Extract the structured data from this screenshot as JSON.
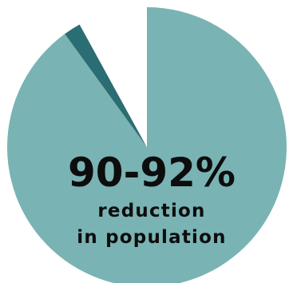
{
  "chart_data": {
    "type": "pie",
    "title": "",
    "slices": [
      {
        "label": "reduction",
        "value": 90,
        "color": "#7ab3b4"
      },
      {
        "label": "",
        "value": 2,
        "color": "#2a6d72"
      },
      {
        "label": "",
        "value": 8,
        "color": "#ffffff"
      }
    ],
    "headline": "90-92%",
    "caption_line1": "reduction",
    "caption_line2": "in population"
  }
}
